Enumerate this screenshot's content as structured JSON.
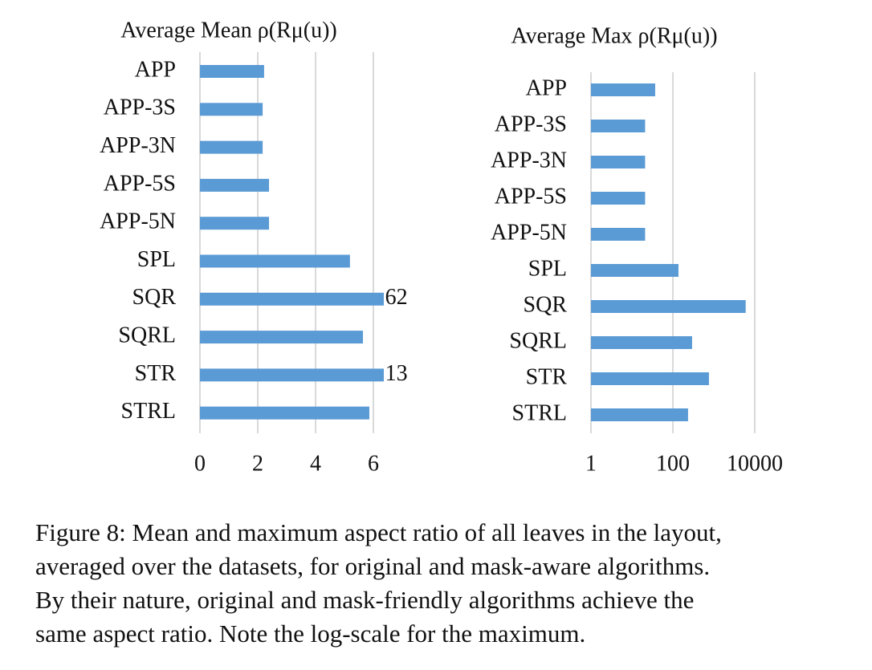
{
  "chart_data": [
    {
      "type": "bar",
      "orientation": "horizontal",
      "title": "Average Mean ρ(Rμ(u))",
      "categories": [
        "APP",
        "APP-3S",
        "APP-3N",
        "APP-5S",
        "APP-5N",
        "SPL",
        "SQR",
        "SQRL",
        "STR",
        "STRL"
      ],
      "values": [
        2.22,
        2.17,
        2.17,
        2.39,
        2.39,
        5.19,
        62,
        5.64,
        13,
        5.86
      ],
      "value_labels": [
        null,
        null,
        null,
        null,
        null,
        null,
        "62",
        null,
        "13",
        null
      ],
      "color": "#5b9bd5",
      "xlim": [
        0,
        6.35
      ],
      "xticks": [
        0,
        2,
        4,
        6
      ],
      "log_scale": false,
      "grid": true
    },
    {
      "type": "bar",
      "orientation": "horizontal",
      "title": "Average Max ρ(Rμ(u))",
      "categories": [
        "APP",
        "APP-3S",
        "APP-3N",
        "APP-5S",
        "APP-5N",
        "SPL",
        "SQR",
        "SQRL",
        "STR",
        "STRL"
      ],
      "values": [
        37,
        21,
        21,
        21,
        21,
        137,
        6000,
        295,
        760,
        235
      ],
      "color": "#5b9bd5",
      "xlim": [
        1,
        10000
      ],
      "xticks": [
        1,
        100,
        10000
      ],
      "log_scale": true,
      "grid": true
    }
  ],
  "caption": [
    "Figure 8: Mean and maximum aspect ratio of all leaves in the layout,",
    "averaged over the datasets, for original and mask-aware algorithms.",
    "By their nature, original and mask-friendly algorithms achieve the",
    "same aspect ratio. Note the log-scale for the maximum."
  ]
}
